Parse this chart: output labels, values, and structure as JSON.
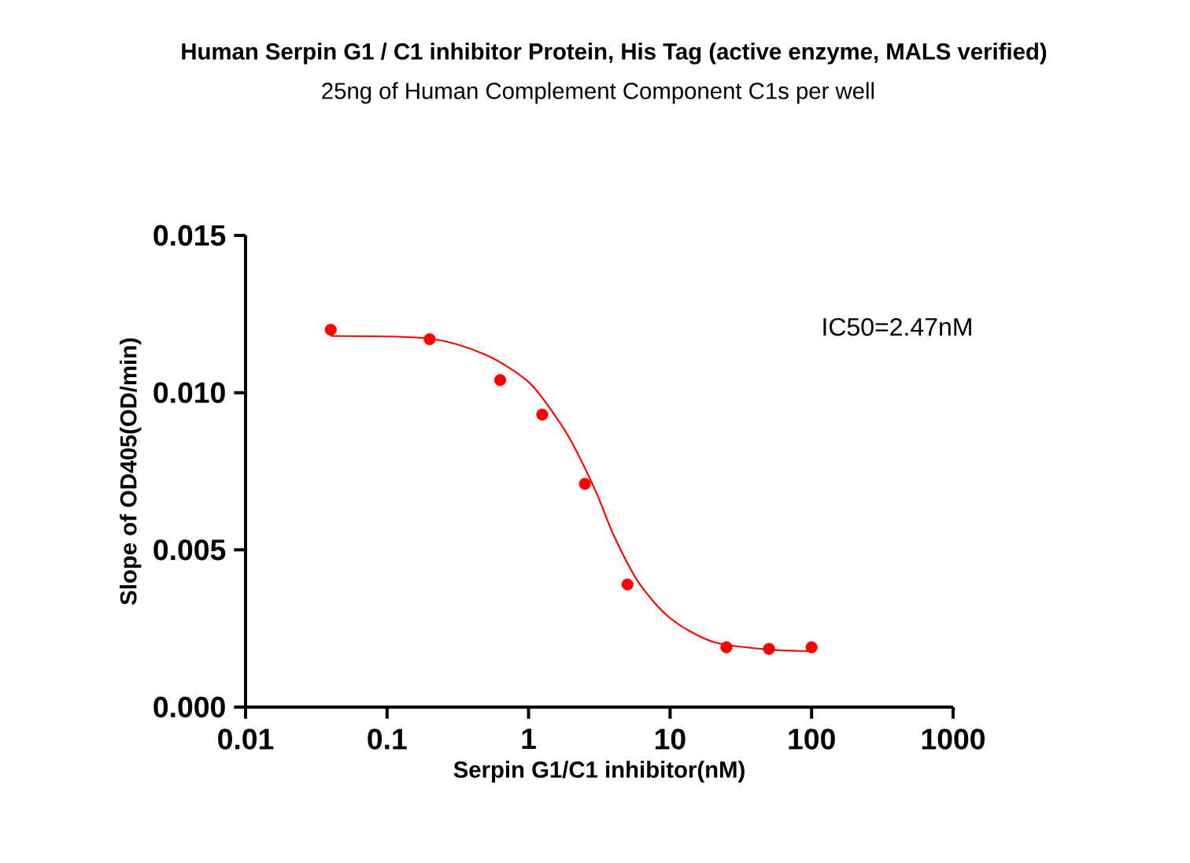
{
  "chart_data": {
    "type": "scatter",
    "title": "Human Serpin G1 / C1 inhibitor Protein, His Tag (active enzyme, MALS verified)",
    "subtitle": "25ng of Human Complement Component C1s per well",
    "xlabel": "Serpin G1/C1 inhibitor(nM)",
    "ylabel": "Slope of OD405(OD/min)",
    "annotations": [
      "IC50=2.47nM"
    ],
    "log": "x",
    "xlim": [
      0.01,
      1000
    ],
    "xticks": [
      0.01,
      0.1,
      1,
      10,
      100,
      1000
    ],
    "ylim": [
      0,
      0.015
    ],
    "yticks": [
      {
        "value": 0,
        "label": "0.000"
      },
      0.005,
      {
        "value": 0.01,
        "label": "0.010"
      },
      0.015
    ],
    "series": [
      {
        "color": "#ff0000",
        "marker": "circle",
        "x": [
          0.04,
          0.2,
          0.63,
          1.25,
          2.5,
          5,
          25,
          50,
          100
        ],
        "values": [
          0.012,
          0.0117,
          0.0104,
          0.0093,
          0.0071,
          0.0039,
          0.0019,
          0.00185,
          0.0019
        ]
      },
      {
        "type": "line",
        "color": "#ff0000",
        "marker": "none",
        "x": [
          0.04,
          0.2,
          0.5,
          1,
          1.5,
          2,
          3,
          4,
          6,
          10,
          20,
          50,
          100
        ],
        "values": [
          0.0118,
          0.01172,
          0.0112,
          0.01034,
          0.00934,
          0.00846,
          0.00684,
          0.00546,
          0.00396,
          0.00283,
          0.00208,
          0.00183,
          0.00178
        ]
      }
    ]
  }
}
